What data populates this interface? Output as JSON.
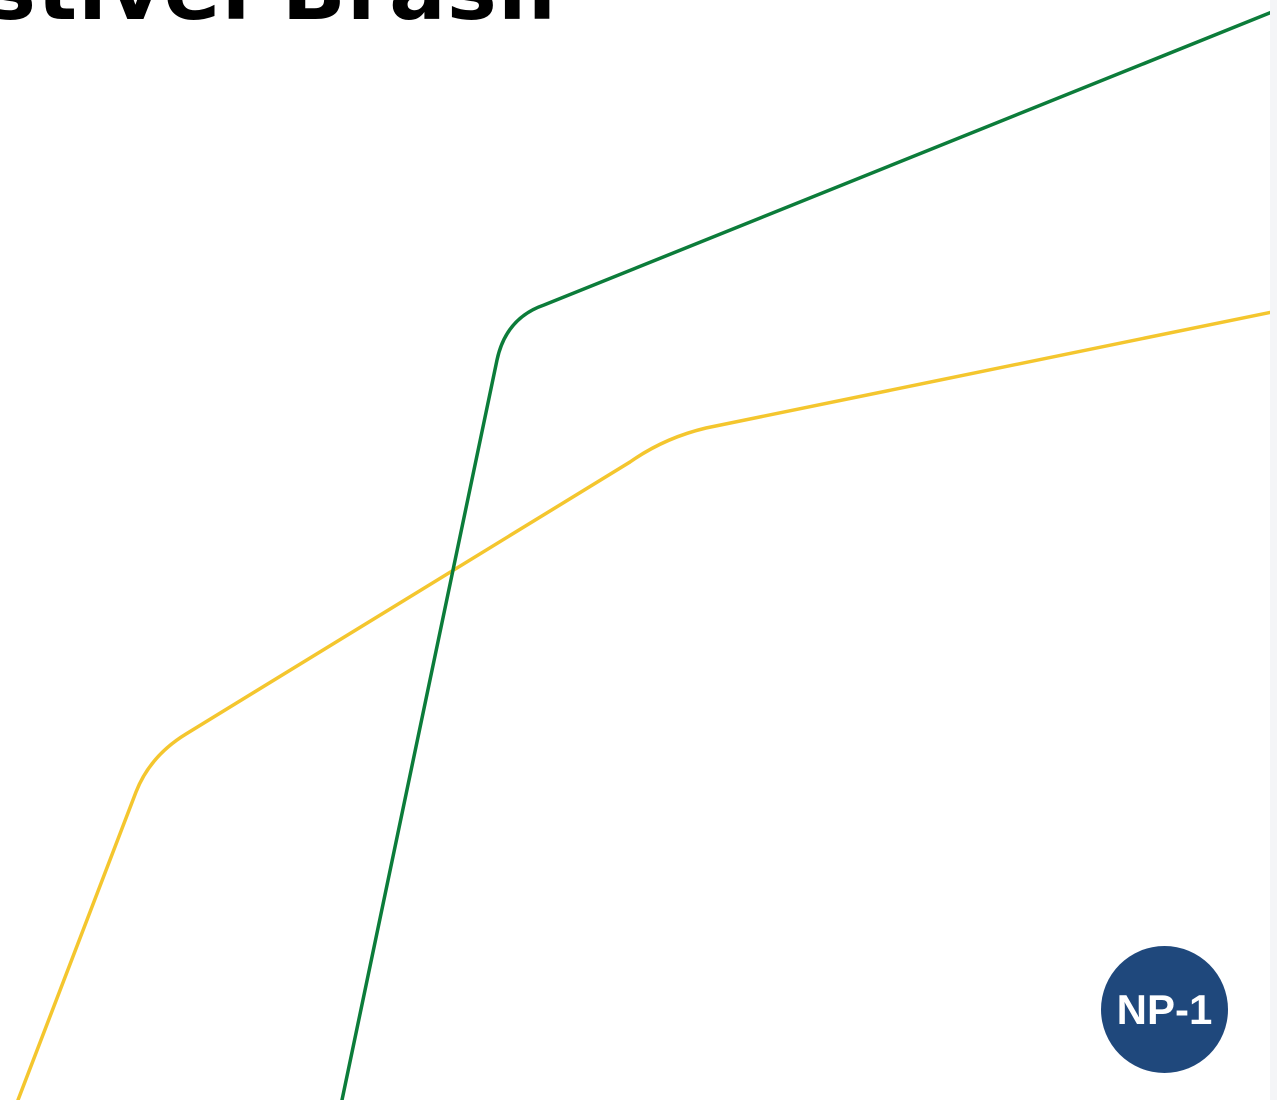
{
  "document": {
    "title_fragment": "stível Brasil"
  },
  "decorations": {
    "green_line_color": "#0c7c3a",
    "yellow_line_color": "#f4c62e"
  },
  "badge": {
    "label": "NP-1",
    "color": "#1f487c"
  }
}
